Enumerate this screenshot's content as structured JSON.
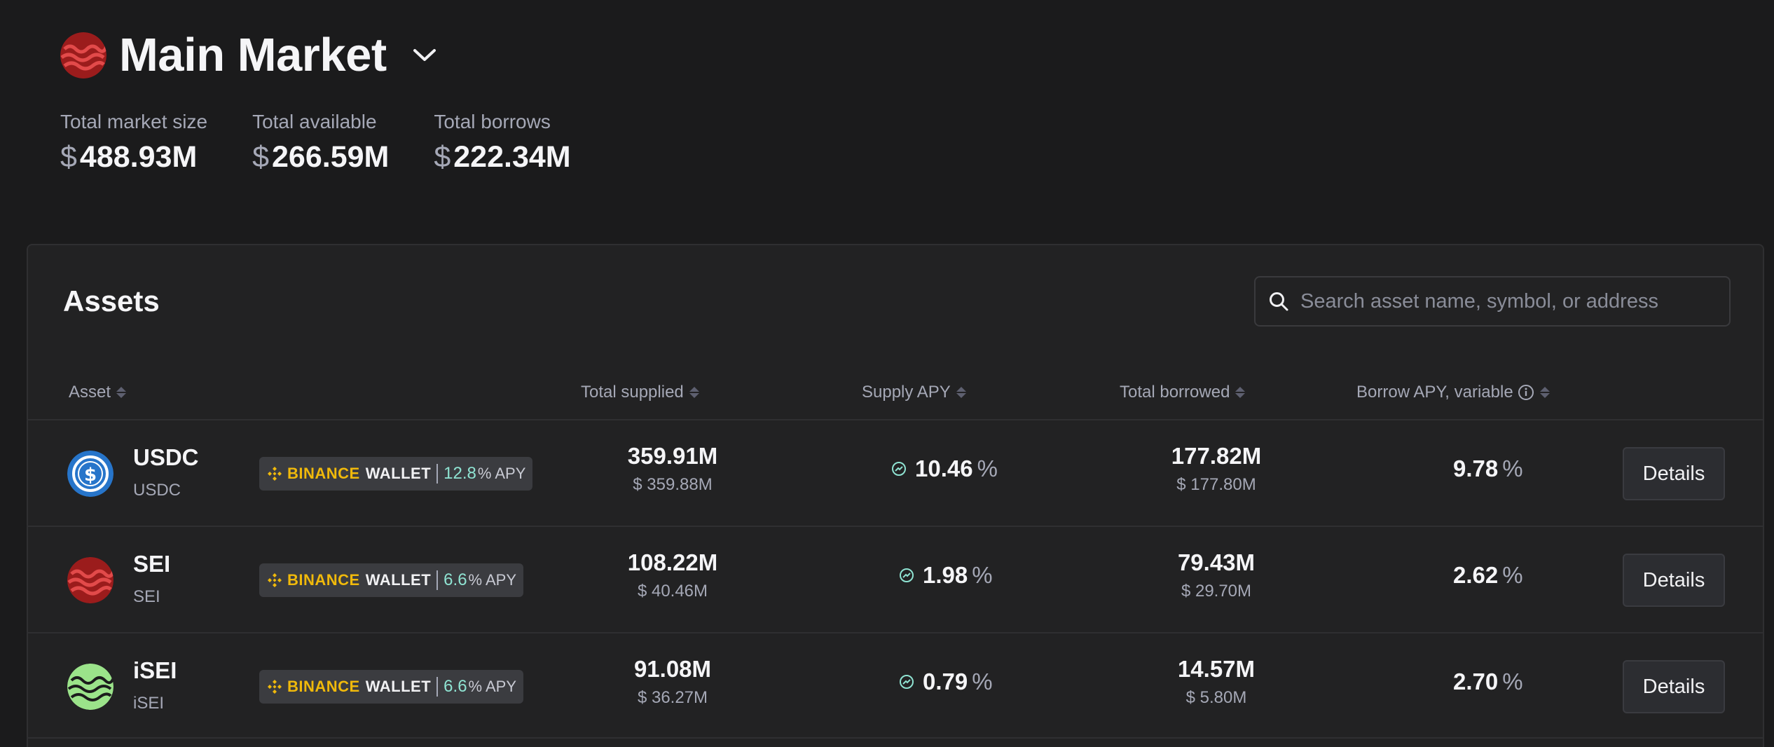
{
  "market": {
    "title": "Main Market",
    "logo_icon": "sei-logo-icon",
    "stats": [
      {
        "label": "Total market size",
        "currency": "$",
        "value": "488.93M"
      },
      {
        "label": "Total available",
        "currency": "$",
        "value": "266.59M"
      },
      {
        "label": "Total borrows",
        "currency": "$",
        "value": "222.34M"
      }
    ]
  },
  "assets_panel": {
    "title": "Assets",
    "search": {
      "placeholder": "Search asset name, symbol, or address",
      "value": ""
    },
    "columns": {
      "asset": "Asset",
      "total_supplied": "Total supplied",
      "supply_apy": "Supply APY",
      "total_borrowed": "Total borrowed",
      "borrow_apy": "Borrow APY, variable"
    },
    "promo_brand": "BINANCE",
    "promo_wallet": "WALLET",
    "apy_unit": "% APY",
    "details_label": "Details",
    "rows": [
      {
        "name": "USDC",
        "symbol": "USDC",
        "icon": "usdc-icon",
        "promo_apy": "12.8",
        "supplied": "359.91M",
        "supplied_usd": "$ 359.88M",
        "supply_apy": "10.46",
        "supply_apy_unit": "%",
        "borrowed": "177.82M",
        "borrowed_usd": "$ 177.80M",
        "borrow_apy": "9.78",
        "borrow_apy_unit": "%"
      },
      {
        "name": "SEI",
        "symbol": "SEI",
        "icon": "sei-icon",
        "promo_apy": "6.6",
        "supplied": "108.22M",
        "supplied_usd": "$ 40.46M",
        "supply_apy": "1.98",
        "supply_apy_unit": "%",
        "borrowed": "79.43M",
        "borrowed_usd": "$ 29.70M",
        "borrow_apy": "2.62",
        "borrow_apy_unit": "%"
      },
      {
        "name": "iSEI",
        "symbol": "iSEI",
        "icon": "isei-icon",
        "promo_apy": "6.6",
        "supplied": "91.08M",
        "supplied_usd": "$ 36.27M",
        "supply_apy": "0.79",
        "supply_apy_unit": "%",
        "borrowed": "14.57M",
        "borrowed_usd": "$ 5.80M",
        "borrow_apy": "2.70",
        "borrow_apy_unit": "%"
      }
    ]
  },
  "colors": {
    "background": "#1b1b1c",
    "panel": "#222223",
    "binance_yellow": "#f0b90b",
    "apy_teal": "#8fe3d2",
    "sei_red": "#9b1c1c",
    "isei_green": "#9be38a",
    "usdc_blue": "#2775ca"
  }
}
